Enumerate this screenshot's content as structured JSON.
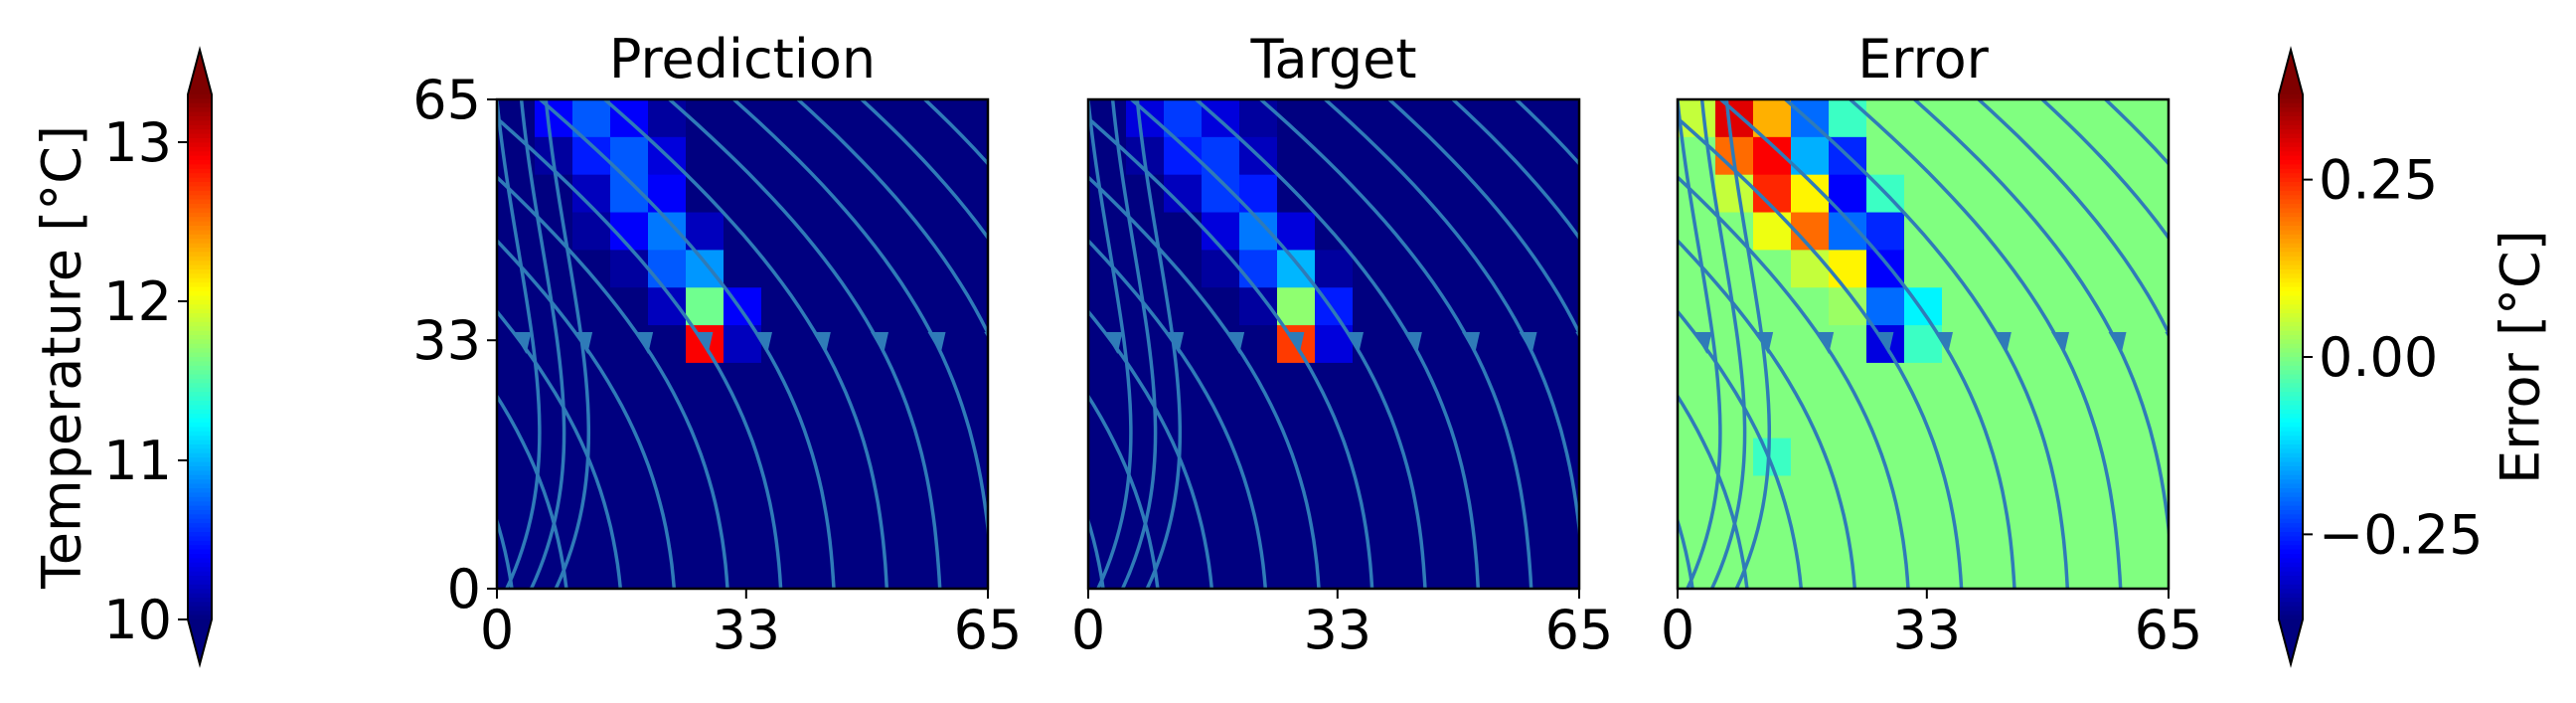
{
  "chart_data": [
    {
      "type": "heatmap",
      "title": "Prediction",
      "xlim": [
        0,
        65
      ],
      "ylim": [
        0,
        65
      ],
      "xticks": [
        0,
        33,
        65
      ],
      "yticks": [
        0,
        33,
        65
      ],
      "colormap": "jet",
      "values": [
        [
          10,
          10.4,
          10.7,
          10.4,
          10.1,
          10,
          10,
          10,
          10,
          10,
          10,
          10,
          10
        ],
        [
          10,
          10.1,
          10.5,
          10.7,
          10.3,
          10,
          10,
          10,
          10,
          10,
          10,
          10,
          10
        ],
        [
          10,
          10,
          10.2,
          10.7,
          10.4,
          10,
          10,
          10,
          10,
          10,
          10,
          10,
          10
        ],
        [
          10,
          10,
          10.1,
          10.4,
          10.8,
          10.2,
          10,
          10,
          10,
          10,
          10,
          10,
          10
        ],
        [
          10,
          10,
          10,
          10.1,
          10.7,
          10.9,
          10,
          10,
          10,
          10,
          10,
          10,
          10
        ],
        [
          10,
          10,
          10,
          10,
          10.2,
          11.6,
          10.4,
          10,
          10,
          10,
          10,
          10,
          10
        ],
        [
          10,
          10,
          10,
          10,
          10,
          12.9,
          10.2,
          10,
          10,
          10,
          10,
          10,
          10
        ],
        [
          10,
          10,
          10,
          10,
          10,
          10,
          10,
          10,
          10,
          10,
          10,
          10,
          10
        ],
        [
          10,
          10,
          10,
          10,
          10,
          10,
          10,
          10,
          10,
          10,
          10,
          10,
          10
        ],
        [
          10,
          10,
          10,
          10,
          10,
          10,
          10,
          10,
          10,
          10,
          10,
          10,
          10
        ],
        [
          10,
          10,
          10,
          10,
          10,
          10,
          10,
          10,
          10,
          10,
          10,
          10,
          10
        ],
        [
          10,
          10,
          10,
          10,
          10,
          10,
          10,
          10,
          10,
          10,
          10,
          10,
          10
        ],
        [
          10,
          10,
          10,
          10,
          10,
          10,
          10,
          10,
          10,
          10,
          10,
          10,
          10
        ]
      ]
    },
    {
      "type": "heatmap",
      "title": "Target",
      "xlim": [
        0,
        65
      ],
      "ylim": [
        0,
        65
      ],
      "xticks": [
        0,
        33,
        65
      ],
      "colormap": "jet",
      "values": [
        [
          10,
          10.3,
          10.6,
          10.3,
          10.1,
          10,
          10,
          10,
          10,
          10,
          10,
          10,
          10
        ],
        [
          10,
          10.1,
          10.5,
          10.6,
          10.2,
          10,
          10,
          10,
          10,
          10,
          10,
          10,
          10
        ],
        [
          10,
          10,
          10.2,
          10.6,
          10.5,
          10,
          10,
          10,
          10,
          10,
          10,
          10,
          10
        ],
        [
          10,
          10,
          10,
          10.3,
          10.8,
          10.3,
          10,
          10,
          10,
          10,
          10,
          10,
          10
        ],
        [
          10,
          10,
          10,
          10.1,
          10.6,
          11,
          10.1,
          10,
          10,
          10,
          10,
          10,
          10
        ],
        [
          10,
          10,
          10,
          10,
          10.1,
          11.7,
          10.5,
          10,
          10,
          10,
          10,
          10,
          10
        ],
        [
          10,
          10,
          10,
          10,
          10,
          12.7,
          10.3,
          10,
          10,
          10,
          10,
          10,
          10
        ],
        [
          10,
          10,
          10,
          10,
          10,
          10,
          10,
          10,
          10,
          10,
          10,
          10,
          10
        ],
        [
          10,
          10,
          10,
          10,
          10,
          10,
          10,
          10,
          10,
          10,
          10,
          10,
          10
        ],
        [
          10,
          10,
          10,
          10,
          10,
          10,
          10,
          10,
          10,
          10,
          10,
          10,
          10
        ],
        [
          10,
          10,
          10,
          10,
          10,
          10,
          10,
          10,
          10,
          10,
          10,
          10,
          10
        ],
        [
          10,
          10,
          10,
          10,
          10,
          10,
          10,
          10,
          10,
          10,
          10,
          10,
          10
        ],
        [
          10,
          10,
          10,
          10,
          10,
          10,
          10,
          10,
          10,
          10,
          10,
          10,
          10
        ]
      ]
    },
    {
      "type": "heatmap",
      "title": "Error",
      "xlim": [
        0,
        65
      ],
      "ylim": [
        0,
        65
      ],
      "xticks": [
        0,
        33,
        65
      ],
      "colormap": "jet",
      "values": [
        [
          0.05,
          0.3,
          0.15,
          -0.2,
          -0.05,
          0,
          0,
          0,
          0,
          0,
          0,
          0,
          0
        ],
        [
          0,
          0.2,
          0.28,
          -0.15,
          -0.25,
          0,
          0,
          0,
          0,
          0,
          0,
          0,
          0
        ],
        [
          0,
          0.05,
          0.25,
          0.1,
          -0.28,
          -0.05,
          0,
          0,
          0,
          0,
          0,
          0,
          0
        ],
        [
          0,
          0,
          0.08,
          0.2,
          -0.2,
          -0.25,
          0,
          0,
          0,
          0,
          0,
          0,
          0
        ],
        [
          0,
          0,
          0,
          0.05,
          0.1,
          -0.28,
          0,
          0,
          0,
          0,
          0,
          0,
          0
        ],
        [
          0,
          0,
          0,
          0,
          0.02,
          -0.2,
          -0.1,
          0,
          0,
          0,
          0,
          0,
          0
        ],
        [
          0,
          0,
          0,
          0,
          0,
          -0.3,
          -0.05,
          0,
          0,
          0,
          0,
          0,
          0
        ],
        [
          0,
          0,
          0,
          0,
          0,
          0,
          0,
          0,
          0,
          0,
          0,
          0,
          0
        ],
        [
          0,
          0,
          0,
          0,
          0,
          0,
          0,
          0,
          0,
          0,
          0,
          0,
          0
        ],
        [
          0,
          0,
          -0.05,
          0,
          0,
          0,
          0,
          0,
          0,
          0,
          0,
          0,
          0
        ],
        [
          0,
          0,
          0,
          0,
          0,
          0,
          0,
          0,
          0,
          0,
          0,
          0,
          0
        ],
        [
          0,
          0,
          0,
          0,
          0,
          0,
          0,
          0,
          0,
          0,
          0,
          0,
          0
        ],
        [
          0,
          0,
          0,
          0,
          0,
          0,
          0,
          0,
          0,
          0,
          0,
          0,
          0
        ]
      ]
    },
    {
      "type": "colorbar",
      "label": "Temperature [°C]",
      "lim": [
        10,
        13.3
      ],
      "ticks": [
        10,
        11,
        12,
        13
      ],
      "colormap": "jet",
      "side": "left"
    },
    {
      "type": "colorbar",
      "label": "Error [°C]",
      "lim": [
        -0.37,
        0.37
      ],
      "ticks": [
        {
          "value": -0.25,
          "label": "−0.25"
        },
        {
          "value": 0,
          "label": "0.00"
        },
        {
          "value": 0.25,
          "label": "0.25"
        }
      ],
      "colormap": "jet",
      "side": "right"
    }
  ]
}
